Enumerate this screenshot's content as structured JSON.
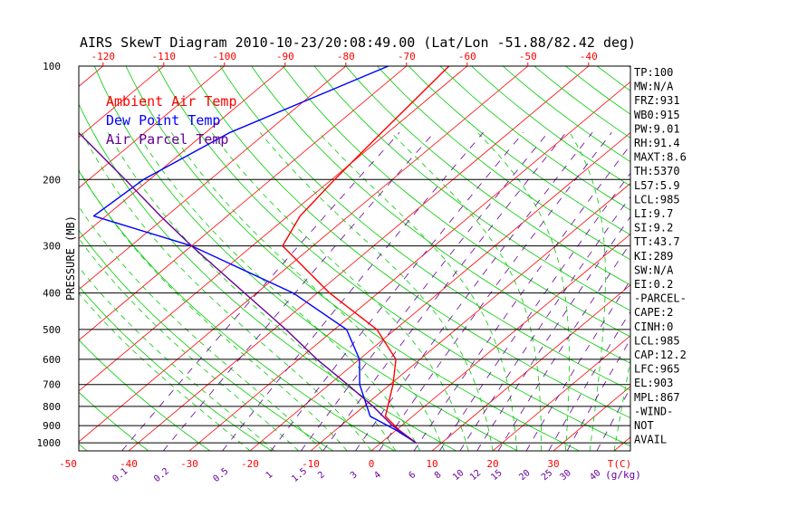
{
  "chart_data": {
    "type": "line",
    "title": "AIRS SkewT Diagram 2010-10-23/20:08:49.00 (Lat/Lon -51.88/82.42 deg)",
    "ylabel": "PRESSURE (MB)",
    "y_scale": "log",
    "ylim": [
      1050,
      100
    ],
    "xlim_bottom": [
      -55,
      45
    ],
    "y_ticks": [
      100,
      200,
      300,
      400,
      500,
      600,
      700,
      800,
      900,
      1000
    ],
    "top_temp_ticks": [
      -120,
      -110,
      -100,
      -90,
      -80,
      -70,
      -60,
      -50,
      -40
    ],
    "bottom_temp_ticks": [
      -50,
      -40,
      -30,
      -20,
      -10,
      0,
      10,
      20,
      30
    ],
    "bottom_temp_unit": "T(C)",
    "mixing_ratio_ticks": [
      "0.1",
      "0.2",
      "0.5",
      "1",
      "1.5",
      "2",
      "3",
      "4",
      "6",
      "8",
      "10",
      "12",
      "15",
      "20",
      "25",
      "30",
      "40"
    ],
    "mixing_ratio_unit": "(g/kg)",
    "legend": [
      "Ambient Air Temp",
      "Dew Point Temp",
      "Air Parcel Temp"
    ],
    "legend_position": "top-left",
    "isobar_grid": true,
    "series": [
      {
        "name": "Ambient Air Temp",
        "color": "#ff0000",
        "points": [
          [
            1000,
            5.8
          ],
          [
            925,
            0.5
          ],
          [
            850,
            -4.5
          ],
          [
            700,
            -9.5
          ],
          [
            600,
            -14.0
          ],
          [
            500,
            -23.0
          ],
          [
            400,
            -38.0
          ],
          [
            300,
            -55.0
          ],
          [
            250,
            -58.0
          ],
          [
            200,
            -59.5
          ],
          [
            150,
            -61.0
          ],
          [
            100,
            -63.0
          ]
        ]
      },
      {
        "name": "Dew Point Temp",
        "color": "#0000ff",
        "points": [
          [
            1000,
            5.8
          ],
          [
            925,
            0.0
          ],
          [
            850,
            -7.0
          ],
          [
            700,
            -15.0
          ],
          [
            600,
            -20.0
          ],
          [
            500,
            -28.0
          ],
          [
            400,
            -44.0
          ],
          [
            300,
            -70.0
          ],
          [
            250,
            -92.0
          ],
          [
            200,
            -91.0
          ],
          [
            150,
            -86.0
          ],
          [
            100,
            -73.0
          ]
        ]
      },
      {
        "name": "Air Parcel Temp",
        "color": "#660099",
        "points": [
          [
            1000,
            5.8
          ],
          [
            900,
            -1.5
          ],
          [
            800,
            -8.5
          ],
          [
            700,
            -17.0
          ],
          [
            600,
            -27.0
          ],
          [
            500,
            -38.0
          ],
          [
            400,
            -52.0
          ],
          [
            300,
            -70.0
          ],
          [
            250,
            -81.0
          ],
          [
            200,
            -94.0
          ],
          [
            150,
            -111.0
          ],
          [
            100,
            -136.0
          ]
        ]
      }
    ],
    "stats": [
      "TP:100",
      "MW:N/A",
      "FRZ:931",
      "WB0:915",
      "PW:9.01",
      "RH:91.4",
      "MAXT:8.6",
      "TH:5370",
      "L57:5.9",
      "LCL:985",
      "LI:9.7",
      "SI:9.2",
      "TT:43.7",
      "KI:289",
      "SW:N/A",
      "EI:0.2",
      "-PARCEL-",
      "CAPE:2",
      "CINH:0",
      "LCL:985",
      "CAP:12.2",
      "LFC:965",
      "EL:903",
      "MPL:867",
      "-WIND-",
      "NOT",
      "AVAIL"
    ],
    "colors": {
      "isotherm": "#ff0000",
      "dry_adiabat": "#00cc00",
      "moist_adiabat": "#00cc00",
      "mixing_ratio": "#660099",
      "isobar": "#000000",
      "ambient": "#ff0000",
      "dewpoint": "#0000ff",
      "parcel": "#660099"
    }
  }
}
